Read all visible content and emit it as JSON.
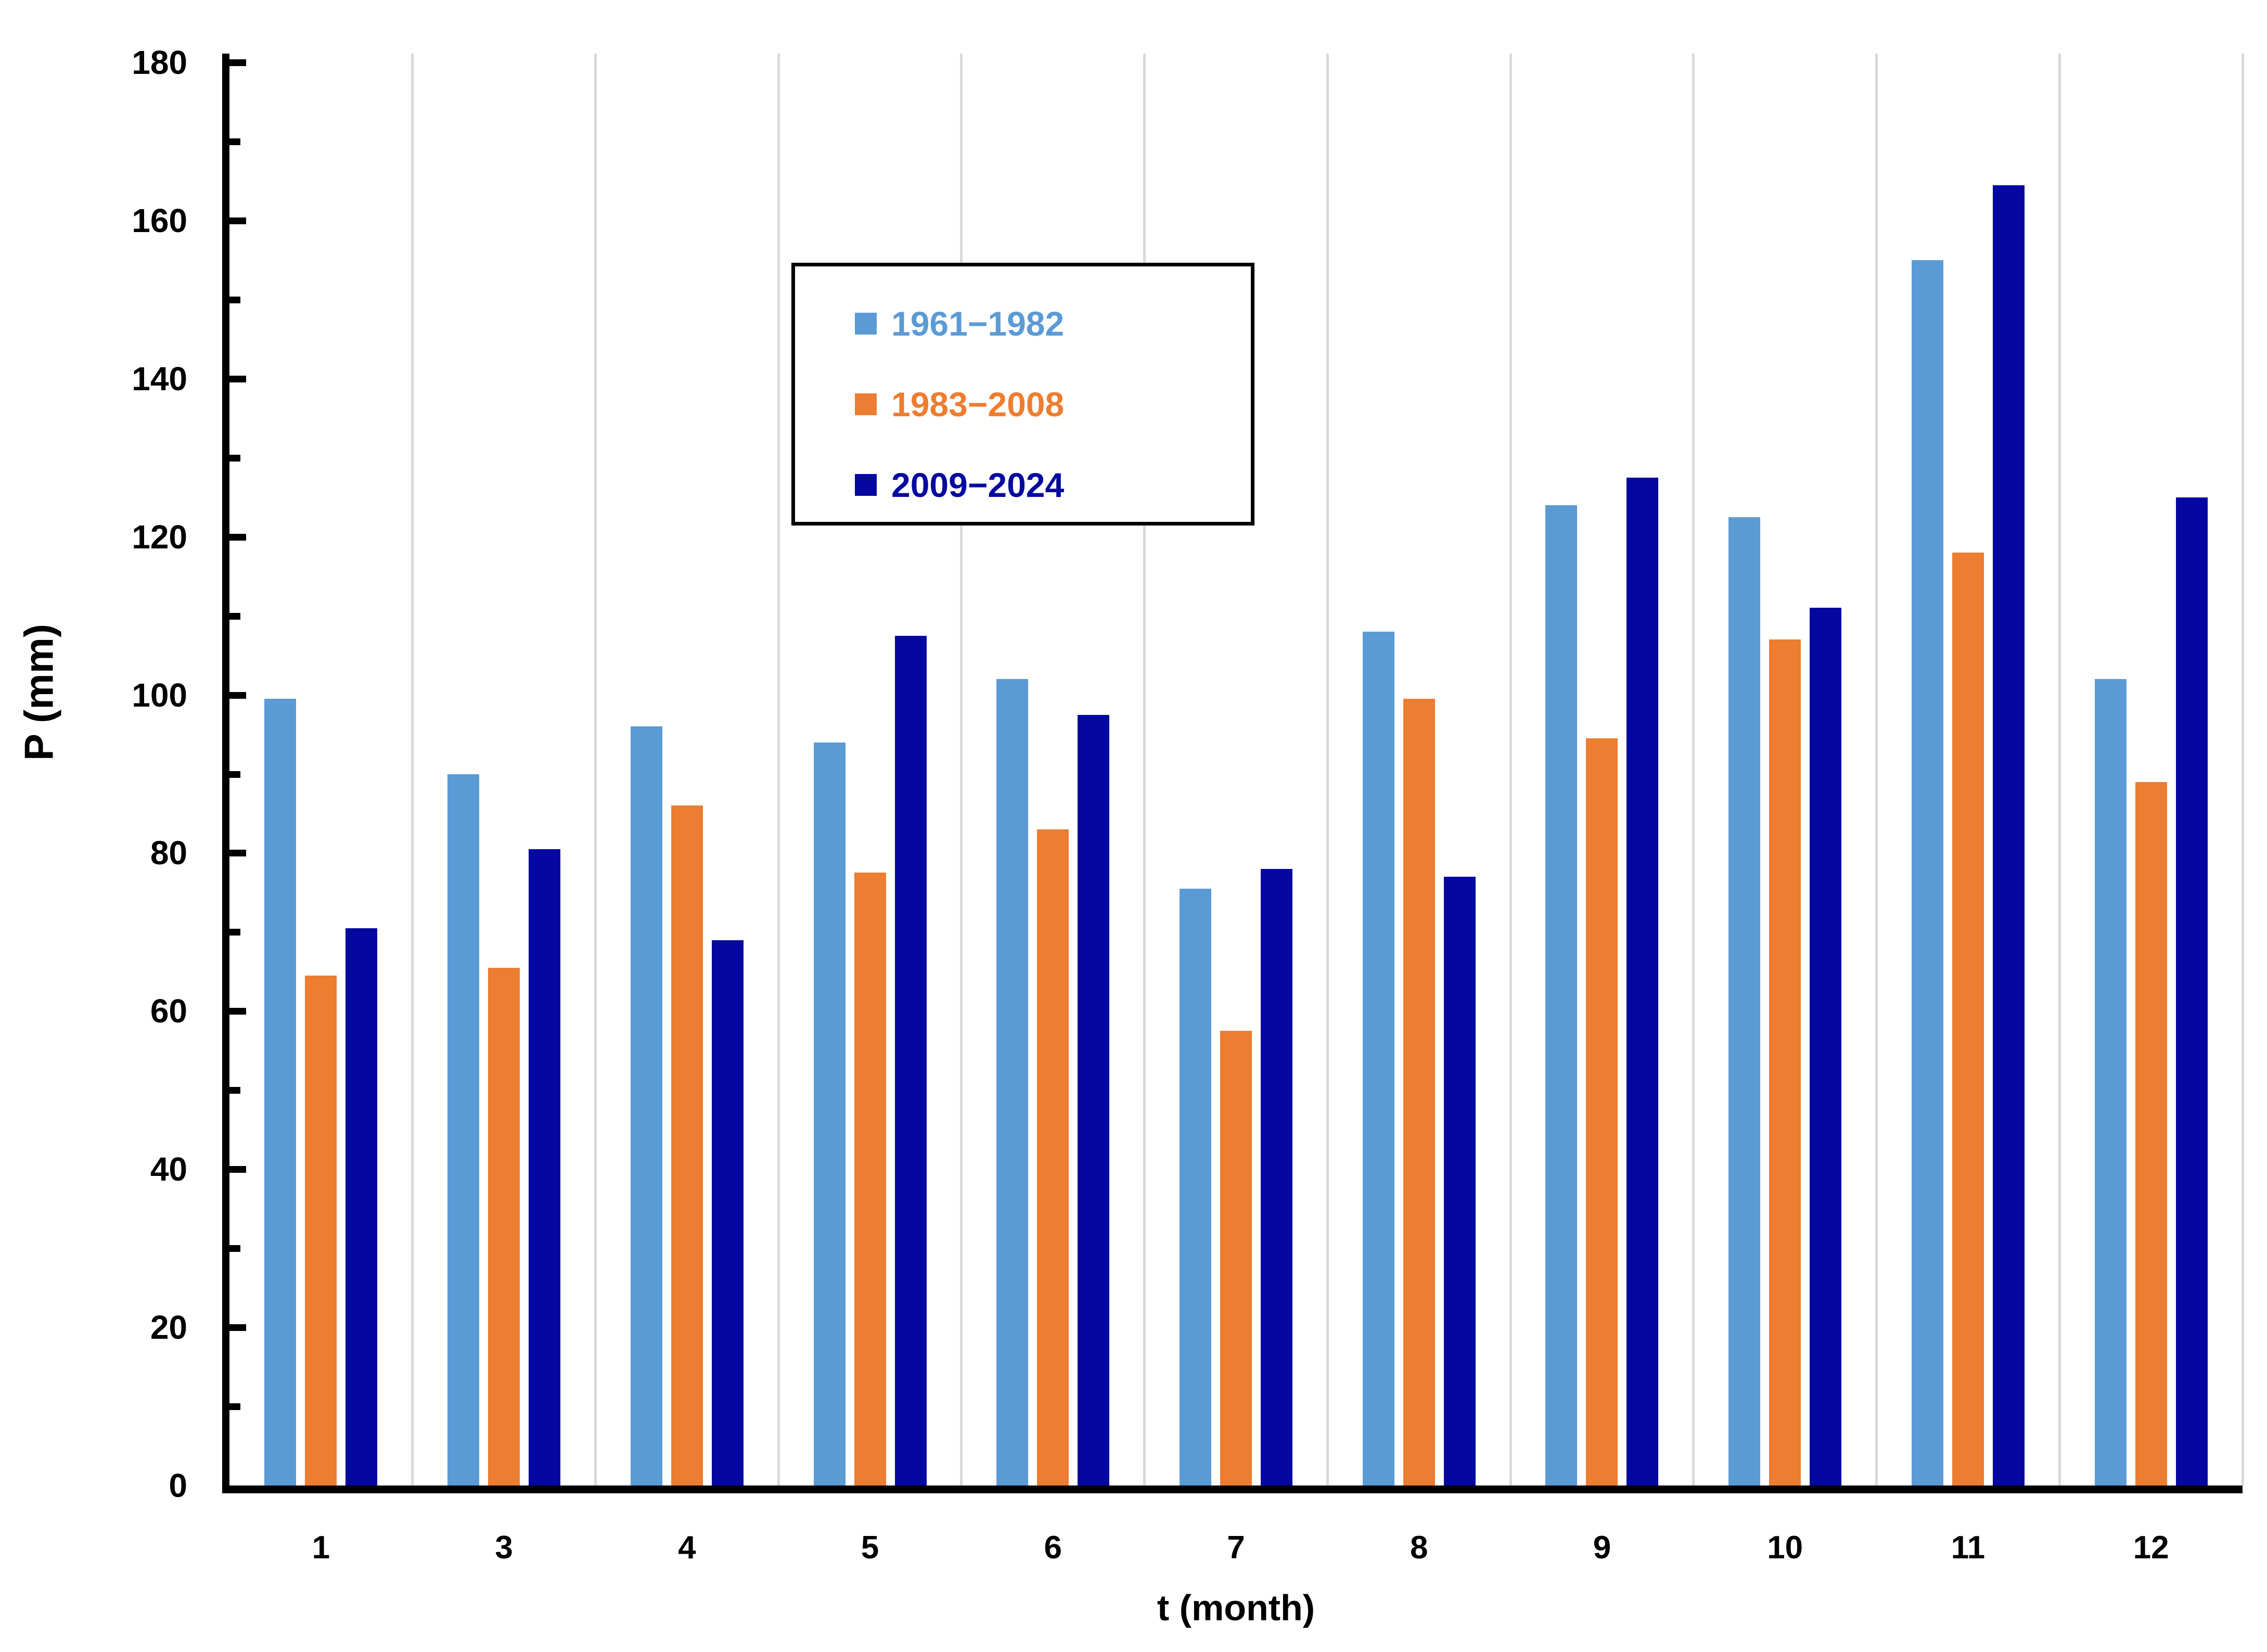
{
  "chart_data": {
    "type": "bar",
    "title": "",
    "xlabel": "t (month)",
    "ylabel": "P (mm)",
    "ylim": [
      0,
      180
    ],
    "ytick_step": 20,
    "ytick_minor_step": 10,
    "ytick_labels": [
      "0",
      "20",
      "40",
      "60",
      "80",
      "100",
      "120",
      "140",
      "160",
      "180"
    ],
    "grid": "vertical-category-separators-only",
    "legend_position": "top-center-inside-box",
    "categories": [
      "1",
      "3",
      "4",
      "5",
      "6",
      "7",
      "8",
      "9",
      "10",
      "11",
      "12"
    ],
    "series": [
      {
        "name": "1961−1982",
        "color": "#5b9bd5",
        "values": [
          99.5,
          90,
          96,
          94,
          102,
          75.5,
          108,
          124,
          122.5,
          155,
          102
        ]
      },
      {
        "name": "1983−2008",
        "color": "#ed7d31",
        "values": [
          64.5,
          65.5,
          86,
          77.5,
          83,
          57.5,
          99.5,
          94.5,
          107,
          118,
          89
        ]
      },
      {
        "name": "2009−2024",
        "color": "#0508a0",
        "values": [
          70.5,
          80.5,
          69,
          107.5,
          97.5,
          78,
          77,
          127.5,
          111,
          164.5,
          125
        ]
      }
    ]
  },
  "axis_colors": {
    "line": "#000000",
    "gridline": "#d9d9d9"
  }
}
